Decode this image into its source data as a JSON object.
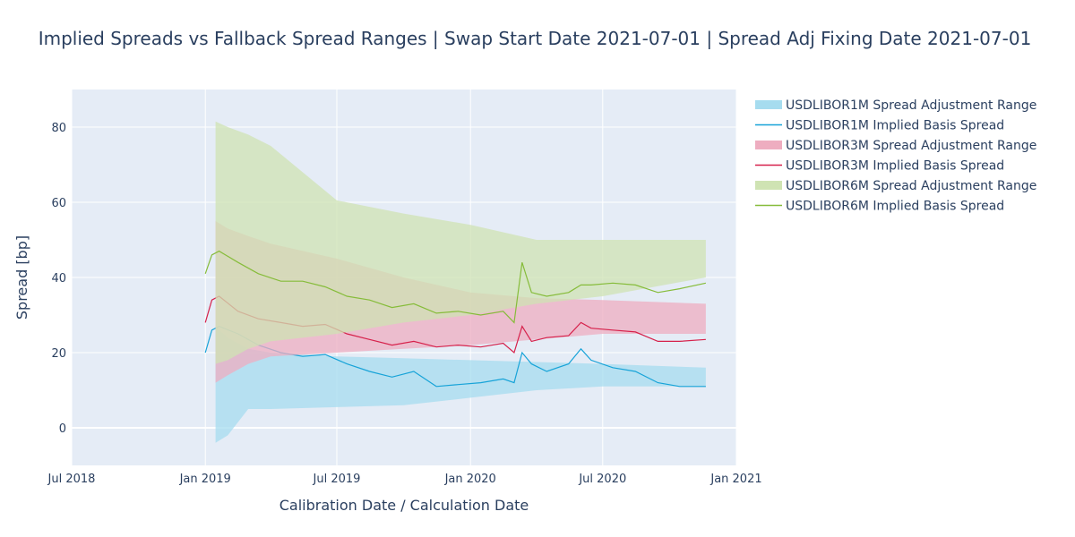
{
  "chart_data": {
    "type": "area",
    "title": "Implied Spreads vs Fallback Spread Ranges | Swap Start Date 2021-07-01 | Spread Adj Fixing Date 2021-07-01",
    "xlabel": "Calibration Date / Calculation Date",
    "ylabel": "Spread [bp]",
    "xlim": [
      "2018-07-01",
      "2021-01-01"
    ],
    "ylim": [
      -10,
      90
    ],
    "x_ticks": [
      {
        "date": "2018-07-01",
        "label": "Jul 2018"
      },
      {
        "date": "2019-01-01",
        "label": "Jan 2019"
      },
      {
        "date": "2019-07-01",
        "label": "Jul 2019"
      },
      {
        "date": "2020-01-01",
        "label": "Jan 2020"
      },
      {
        "date": "2020-07-01",
        "label": "Jul 2020"
      },
      {
        "date": "2021-01-01",
        "label": "Jan 2021"
      }
    ],
    "y_ticks": [
      0,
      20,
      40,
      60,
      80
    ],
    "grid": true,
    "legend_position": "right",
    "series": [
      {
        "name": "USDLIBOR1M Spread Adjustment Range",
        "kind": "band",
        "color": "#a6dcef",
        "x": [
          "2019-01-15",
          "2019-02-01",
          "2019-03-01",
          "2019-04-01",
          "2019-07-01",
          "2019-10-01",
          "2020-01-01",
          "2020-04-01",
          "2020-07-01",
          "2020-11-20"
        ],
        "lower": [
          -4,
          -2,
          5,
          5,
          5.5,
          6,
          8,
          10,
          11,
          11
        ],
        "upper": [
          27,
          24,
          21,
          20,
          19,
          18.5,
          18,
          17.5,
          17,
          16
        ]
      },
      {
        "name": "USDLIBOR1M Implied Basis Spread",
        "kind": "line",
        "color": "#17a3d8",
        "x": [
          "2019-01-01",
          "2019-01-10",
          "2019-01-20",
          "2019-02-15",
          "2019-03-15",
          "2019-04-15",
          "2019-05-15",
          "2019-06-15",
          "2019-07-15",
          "2019-08-15",
          "2019-09-15",
          "2019-10-15",
          "2019-11-15",
          "2019-12-15",
          "2020-01-15",
          "2020-02-15",
          "2020-03-01",
          "2020-03-12",
          "2020-03-25",
          "2020-04-15",
          "2020-05-15",
          "2020-06-01",
          "2020-06-15",
          "2020-07-15",
          "2020-08-15",
          "2020-09-15",
          "2020-10-15",
          "2020-11-20"
        ],
        "y": [
          20,
          26,
          27,
          25,
          22,
          20,
          19,
          19.5,
          17,
          15,
          13.5,
          15,
          11,
          11.5,
          12,
          13,
          12,
          20,
          17,
          15,
          17,
          21,
          18,
          16,
          15,
          12,
          11,
          11
        ]
      },
      {
        "name": "USDLIBOR3M Spread Adjustment Range",
        "kind": "band",
        "color": "#eeadc0",
        "x": [
          "2019-01-15",
          "2019-02-01",
          "2019-03-01",
          "2019-04-01",
          "2019-07-01",
          "2019-10-01",
          "2020-01-01",
          "2020-04-01",
          "2020-07-01",
          "2020-11-20"
        ],
        "lower": [
          12,
          14,
          17,
          19,
          20,
          21,
          22,
          23.5,
          25,
          25
        ],
        "upper": [
          55,
          53,
          51,
          49,
          45,
          40,
          36,
          34.5,
          34,
          33
        ]
      },
      {
        "name": "USDLIBOR3M Implied Basis Spread",
        "kind": "line",
        "color": "#d6214b",
        "x": [
          "2019-01-01",
          "2019-01-10",
          "2019-01-20",
          "2019-02-15",
          "2019-03-15",
          "2019-04-15",
          "2019-05-15",
          "2019-06-15",
          "2019-07-15",
          "2019-08-15",
          "2019-09-15",
          "2019-10-15",
          "2019-11-15",
          "2019-12-15",
          "2020-01-15",
          "2020-02-15",
          "2020-03-01",
          "2020-03-12",
          "2020-03-25",
          "2020-04-15",
          "2020-05-15",
          "2020-06-01",
          "2020-06-15",
          "2020-07-15",
          "2020-08-15",
          "2020-09-15",
          "2020-10-15",
          "2020-11-20"
        ],
        "y": [
          28,
          34,
          35,
          31,
          29,
          28,
          27,
          27.5,
          25,
          23.5,
          22,
          23,
          21.5,
          22,
          21.5,
          22.5,
          20,
          27,
          23,
          24,
          24.5,
          28,
          26.5,
          26,
          25.5,
          23,
          23,
          23.5
        ]
      },
      {
        "name": "USDLIBOR6M Spread Adjustment Range",
        "kind": "band",
        "color": "#cfe3b3",
        "x": [
          "2019-01-15",
          "2019-02-01",
          "2019-03-01",
          "2019-04-01",
          "2019-07-01",
          "2019-10-01",
          "2020-01-01",
          "2020-04-01",
          "2020-07-01",
          "2020-11-20"
        ],
        "lower": [
          17,
          18,
          21,
          23,
          25,
          28,
          30,
          33,
          35,
          40
        ],
        "upper": [
          81.5,
          80,
          78,
          75,
          60.5,
          57,
          54,
          50,
          50,
          50
        ]
      },
      {
        "name": "USDLIBOR6M Implied Basis Spread",
        "kind": "line",
        "color": "#86bc3a",
        "x": [
          "2019-01-01",
          "2019-01-10",
          "2019-01-20",
          "2019-02-15",
          "2019-03-15",
          "2019-04-15",
          "2019-05-15",
          "2019-06-15",
          "2019-07-15",
          "2019-08-15",
          "2019-09-15",
          "2019-10-15",
          "2019-11-15",
          "2019-12-15",
          "2020-01-15",
          "2020-02-15",
          "2020-03-01",
          "2020-03-12",
          "2020-03-25",
          "2020-04-15",
          "2020-05-15",
          "2020-06-01",
          "2020-06-15",
          "2020-07-15",
          "2020-08-15",
          "2020-09-15",
          "2020-10-15",
          "2020-11-20"
        ],
        "y": [
          41,
          46,
          47,
          44,
          41,
          39,
          39,
          37.5,
          35,
          34,
          32,
          33,
          30.5,
          31,
          30,
          31,
          28,
          44,
          36,
          35,
          36,
          38,
          38,
          38.5,
          38,
          36,
          37,
          38.5
        ]
      }
    ]
  }
}
